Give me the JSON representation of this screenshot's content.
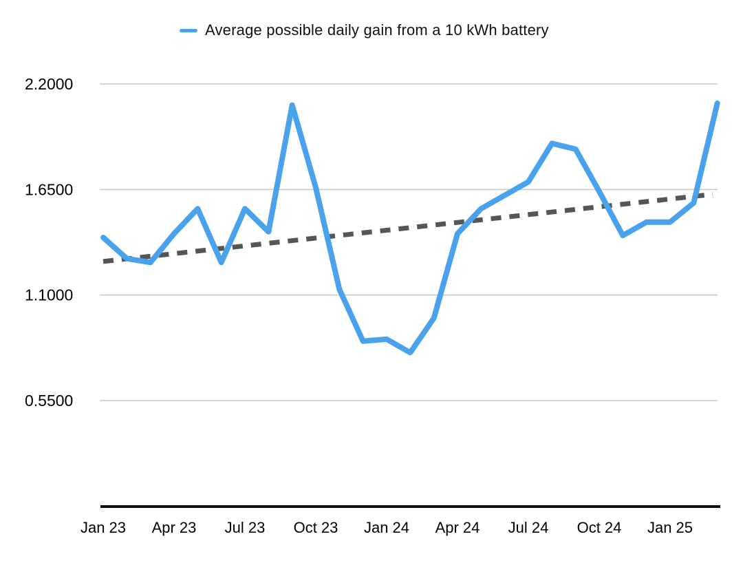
{
  "legend": {
    "label": "Average possible daily gain from a 10 kWh battery"
  },
  "colors": {
    "series": "#4aa1ec",
    "trendline": "#555658",
    "gridline": "#c9c9c9",
    "axis_line": "#0d0d0d",
    "tick_text": "#000000"
  },
  "chart_data": {
    "type": "line",
    "title": "Average possible daily gain from a 10 kWh battery",
    "legend_position": "top",
    "grid": true,
    "ylim": [
      0.0,
      2.2
    ],
    "categories": [
      "Jan 23",
      "Feb 23",
      "Mar 23",
      "Apr 23",
      "May 23",
      "Jun 23",
      "Jul 23",
      "Aug 23",
      "Sep 23",
      "Oct 23",
      "Nov 23",
      "Dec 23",
      "Jan 24",
      "Feb 24",
      "Mar 24",
      "Apr 24",
      "May 24",
      "Jun 24",
      "Jul 24",
      "Aug 24",
      "Sep 24",
      "Oct 24",
      "Nov 24",
      "Dec 24",
      "Jan 25",
      "Feb 25",
      "Mar 25"
    ],
    "series": [
      {
        "name": "Average possible daily gain from a 10 kWh battery",
        "values": [
          1.4,
          1.29,
          1.27,
          1.42,
          1.55,
          1.27,
          1.55,
          1.43,
          2.09,
          1.66,
          1.13,
          0.86,
          0.87,
          0.8,
          0.98,
          1.42,
          1.55,
          1.62,
          1.69,
          1.89,
          1.86,
          1.64,
          1.41,
          1.48,
          1.48,
          1.58,
          2.1
        ]
      }
    ],
    "trendline": {
      "style": "dashed",
      "start_value": 1.275,
      "end_value": 1.625
    },
    "y_ticks": [
      {
        "label": "2.2000",
        "value": 2.2
      },
      {
        "label": "1.6500",
        "value": 1.65
      },
      {
        "label": "1.1000",
        "value": 1.1
      },
      {
        "label": "0.5500",
        "value": 0.55
      }
    ],
    "x_ticks": [
      {
        "label": "Jan 23",
        "month_index": 0
      },
      {
        "label": "Apr 23",
        "month_index": 3
      },
      {
        "label": "Jul 23",
        "month_index": 6
      },
      {
        "label": "Oct 23",
        "month_index": 9
      },
      {
        "label": "Jan 24",
        "month_index": 12
      },
      {
        "label": "Apr 24",
        "month_index": 15
      },
      {
        "label": "Jul 24",
        "month_index": 18
      },
      {
        "label": "Oct 24",
        "month_index": 21
      },
      {
        "label": "Jan 25",
        "month_index": 24
      }
    ]
  }
}
